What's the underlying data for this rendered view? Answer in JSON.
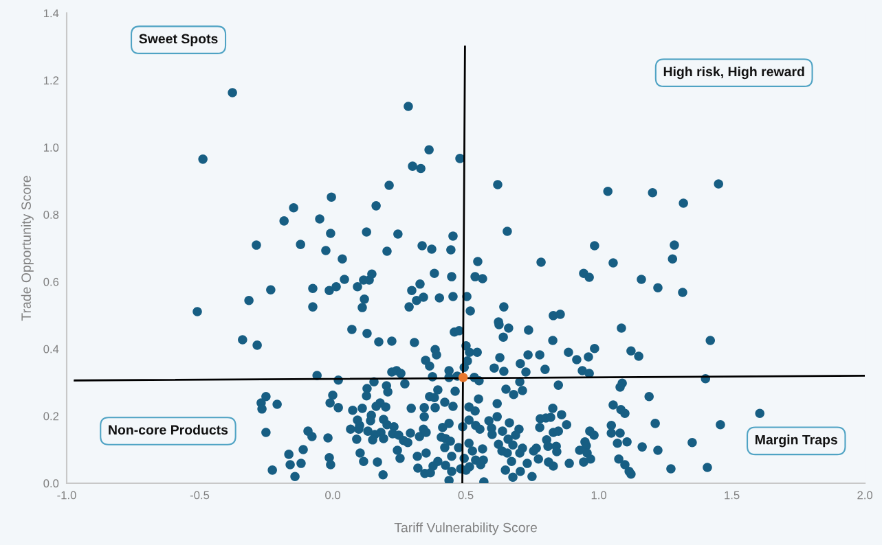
{
  "chart_data": {
    "type": "scatter",
    "xlabel": "Tariff Vulnerability Score",
    "ylabel": "Trade Opportunity Score",
    "xlim": [
      -1.0,
      2.0
    ],
    "ylim": [
      0.0,
      1.4
    ],
    "xticks": [
      {
        "value": -1.0,
        "label": "-1.0"
      },
      {
        "value": -0.5,
        "label": "-0.5"
      },
      {
        "value": 0.0,
        "label": "0.0"
      },
      {
        "value": 0.5,
        "label": "0.5"
      },
      {
        "value": 1.0,
        "label": "1.0"
      },
      {
        "value": 1.5,
        "label": "1.5"
      },
      {
        "value": 2.0,
        "label": "2.0"
      }
    ],
    "yticks": [
      {
        "value": 0.0,
        "label": "0.0"
      },
      {
        "value": 0.2,
        "label": "0.2"
      },
      {
        "value": 0.4,
        "label": "0.4"
      },
      {
        "value": 0.6,
        "label": "0.6"
      },
      {
        "value": 0.8,
        "label": "0.8"
      },
      {
        "value": 1.0,
        "label": "1.0"
      },
      {
        "value": 1.2,
        "label": "1.2"
      },
      {
        "value": 1.4,
        "label": "1.4"
      }
    ],
    "grid": false,
    "legend": false,
    "annotations": [
      "Sweet Spots",
      "High risk, High reward",
      "Non-core Products",
      "Margin Traps"
    ],
    "series": [
      {
        "marker": "circle",
        "color": "#175e83",
        "x": [
          -0.377,
          -0.488,
          -0.509,
          -0.315,
          -0.339,
          -0.284,
          -0.287,
          -0.147,
          -0.183,
          -0.121,
          -0.233,
          -0.075,
          -0.075,
          -0.049,
          -0.026,
          -0.005,
          -0.008,
          -0.013,
          0.013,
          0.036,
          0.044,
          0.072,
          0.093,
          0.116,
          0.119,
          0.111,
          0.127,
          0.129,
          0.137,
          0.147,
          0.163,
          0.173,
          0.204,
          0.212,
          0.222,
          0.245,
          0.284,
          0.3,
          0.331,
          0.362,
          0.336,
          0.372,
          0.315,
          0.328,
          0.297,
          0.341,
          0.401,
          0.287,
          0.307,
          0.382,
          0.444,
          0.452,
          0.447,
          0.478,
          0.452,
          0.385,
          0.39,
          0.349,
          0.364,
          0.457,
          0.475,
          0.62,
          0.656,
          0.504,
          0.517,
          0.545,
          0.535,
          0.563,
          0.783,
          0.943,
          0.964,
          0.984,
          1.034,
          1.054,
          1.202,
          1.284,
          1.277,
          1.315,
          1.318,
          1.45,
          1.16,
          1.222,
          0.643,
          0.829,
          0.855,
          1.085,
          0.623,
          0.625,
          0.661,
          0.736,
          0.641,
          0.827,
          1.419,
          0.886,
          0.917,
          0.961,
          0.984,
          1.121,
          1.15,
          0.734,
          0.778,
          0.628,
          0.705,
          0.798,
          0.607,
          0.726,
          0.643,
          0.938,
          0.964,
          1.401,
          0.501,
          0.514,
          0.543,
          0.506,
          0.494,
          0.437,
          -0.059,
          0.021,
          0.222,
          0.24,
          0.256,
          0.375,
          0.437,
          0.468,
          0.532,
          0.55,
          0.155,
          0.202,
          0.207,
          0.271,
          0.129,
          0.127,
          0.395,
          0.46,
          0.364,
          0.382,
          0.548,
          0.0,
          -0.01,
          0.021,
          -0.251,
          -0.269,
          -0.266,
          -0.209,
          0.075,
          0.111,
          0.178,
          0.163,
          0.199,
          0.295,
          0.344,
          0.344,
          0.385,
          0.421,
          0.452,
          0.512,
          0.535,
          0.145,
          0.142,
          0.093,
          0.101,
          0.067,
          0.098,
          0.191,
          0.204,
          0.23,
          0.437,
          0.413,
          0.488,
          0.512,
          0.537,
          -0.251,
          -0.093,
          -0.078,
          -0.018,
          0.132,
          0.09,
          0.158,
          0.181,
          0.191,
          0.15,
          0.225,
          0.248,
          0.266,
          0.282,
          0.292,
          0.326,
          0.341,
          0.351,
          0.408,
          0.424,
          0.442,
          0.421,
          0.473,
          0.512,
          0.525,
          0.243,
          -0.165,
          -0.111,
          -0.16,
          -0.119,
          -0.227,
          -0.142,
          -0.013,
          -0.008,
          0.103,
          0.116,
          0.168,
          0.189,
          0.253,
          0.318,
          0.351,
          0.395,
          0.377,
          0.32,
          0.346,
          0.367,
          0.424,
          0.447,
          0.447,
          0.481,
          0.437,
          0.494,
          0.703,
          0.848,
          1.088,
          1.08,
          0.651,
          0.68,
          0.713,
          0.618,
          1.189,
          0.827,
          0.86,
          1.054,
          1.083,
          1.098,
          1.605,
          0.618,
          0.78,
          0.801,
          0.819,
          0.587,
          0.664,
          0.879,
          1.212,
          1.457,
          0.553,
          0.597,
          0.599,
          0.638,
          0.7,
          0.687,
          0.778,
          0.829,
          0.848,
          0.966,
          0.982,
          1.047,
          1.047,
          1.08,
          0.804,
          0.659,
          0.677,
          0.623,
          0.636,
          0.656,
          0.563,
          0.713,
          0.703,
          0.765,
          0.755,
          0.809,
          0.84,
          0.842,
          0.948,
          0.953,
          0.928,
          0.956,
          1.07,
          1.106,
          1.163,
          1.222,
          1.351,
          0.537,
          0.566,
          0.556,
          0.514,
          0.501,
          0.672,
          0.773,
          0.731,
          0.811,
          0.829,
          0.889,
          0.943,
          0.969,
          1.075,
          1.098,
          1.114,
          1.121,
          1.271,
          1.408,
          0.649,
          0.677,
          0.705,
          0.749,
          0.568
        ],
        "values": [
          1.163,
          0.965,
          0.511,
          0.544,
          0.427,
          0.411,
          0.709,
          0.82,
          0.781,
          0.711,
          0.576,
          0.58,
          0.525,
          0.787,
          0.693,
          0.852,
          0.744,
          0.574,
          0.585,
          0.668,
          0.607,
          0.458,
          0.585,
          0.605,
          0.548,
          0.523,
          0.748,
          0.446,
          0.605,
          0.623,
          0.826,
          0.421,
          0.691,
          0.887,
          0.423,
          0.742,
          1.122,
          0.944,
          0.937,
          0.993,
          0.707,
          0.697,
          0.544,
          0.593,
          0.574,
          0.554,
          0.552,
          0.525,
          0.419,
          0.625,
          0.695,
          0.736,
          0.615,
          0.967,
          0.556,
          0.398,
          0.382,
          0.366,
          0.349,
          0.45,
          0.454,
          0.889,
          0.75,
          0.556,
          0.513,
          0.66,
          0.615,
          0.609,
          0.658,
          0.625,
          0.613,
          0.707,
          0.869,
          0.656,
          0.865,
          0.709,
          0.668,
          0.568,
          0.834,
          0.891,
          0.607,
          0.582,
          0.525,
          0.499,
          0.503,
          0.462,
          0.48,
          0.472,
          0.462,
          0.456,
          0.435,
          0.425,
          0.425,
          0.39,
          0.368,
          0.376,
          0.401,
          0.394,
          0.378,
          0.382,
          0.382,
          0.374,
          0.356,
          0.339,
          0.343,
          0.331,
          0.333,
          0.335,
          0.327,
          0.311,
          0.409,
          0.39,
          0.39,
          0.364,
          0.345,
          0.335,
          0.321,
          0.307,
          0.331,
          0.335,
          0.327,
          0.317,
          0.315,
          0.319,
          0.315,
          0.305,
          0.302,
          0.29,
          0.272,
          0.296,
          0.282,
          0.26,
          0.278,
          0.274,
          0.258,
          0.255,
          0.251,
          0.262,
          0.239,
          0.225,
          0.258,
          0.239,
          0.221,
          0.235,
          0.217,
          0.223,
          0.239,
          0.229,
          0.227,
          0.223,
          0.225,
          0.198,
          0.225,
          0.241,
          0.229,
          0.227,
          0.215,
          0.202,
          0.186,
          0.188,
          0.172,
          0.161,
          0.161,
          0.19,
          0.174,
          0.168,
          0.178,
          0.166,
          0.168,
          0.188,
          0.172,
          0.151,
          0.155,
          0.139,
          0.135,
          0.155,
          0.131,
          0.145,
          0.151,
          0.133,
          0.129,
          0.147,
          0.143,
          0.127,
          0.121,
          0.149,
          0.139,
          0.161,
          0.151,
          0.137,
          0.133,
          0.125,
          0.106,
          0.106,
          0.119,
          0.096,
          0.098,
          0.086,
          0.1,
          0.055,
          0.059,
          0.039,
          0.02,
          0.076,
          0.055,
          0.09,
          0.065,
          0.063,
          0.025,
          0.074,
          0.08,
          0.09,
          0.065,
          0.051,
          0.045,
          0.029,
          0.031,
          0.053,
          0.035,
          0.08,
          0.043,
          0.008,
          0.074,
          0.302,
          0.292,
          0.298,
          0.286,
          0.28,
          0.264,
          0.276,
          0.237,
          0.258,
          0.223,
          0.204,
          0.233,
          0.219,
          0.208,
          0.208,
          0.198,
          0.192,
          0.194,
          0.196,
          0.186,
          0.18,
          0.174,
          0.178,
          0.174,
          0.161,
          0.164,
          0.145,
          0.155,
          0.161,
          0.143,
          0.166,
          0.151,
          0.155,
          0.155,
          0.143,
          0.172,
          0.149,
          0.149,
          0.129,
          0.131,
          0.114,
          0.116,
          0.096,
          0.09,
          0.102,
          0.104,
          0.09,
          0.104,
          0.096,
          0.11,
          0.11,
          0.094,
          0.123,
          0.112,
          0.098,
          0.09,
          0.119,
          0.123,
          0.108,
          0.098,
          0.121,
          0.069,
          0.069,
          0.055,
          0.049,
          0.039,
          0.065,
          0.072,
          0.059,
          0.063,
          0.051,
          0.059,
          0.063,
          0.072,
          0.072,
          0.055,
          0.035,
          0.027,
          0.043,
          0.047,
          0.039,
          0.018,
          0.035,
          0.02,
          0.004
        ]
      },
      {
        "marker": "circle",
        "color": "#e8772e",
        "x": [
          0.49
        ],
        "values": [
          0.315
        ]
      },
      {
        "type": "line",
        "marker": "none",
        "color": "#000000",
        "x": [
          -0.97,
          2.0
        ],
        "values": [
          0.306,
          0.32
        ]
      },
      {
        "type": "line",
        "marker": "none",
        "color": "#000000",
        "x": [
          0.497,
          0.487
        ],
        "values": [
          1.3,
          0.0
        ]
      }
    ]
  }
}
